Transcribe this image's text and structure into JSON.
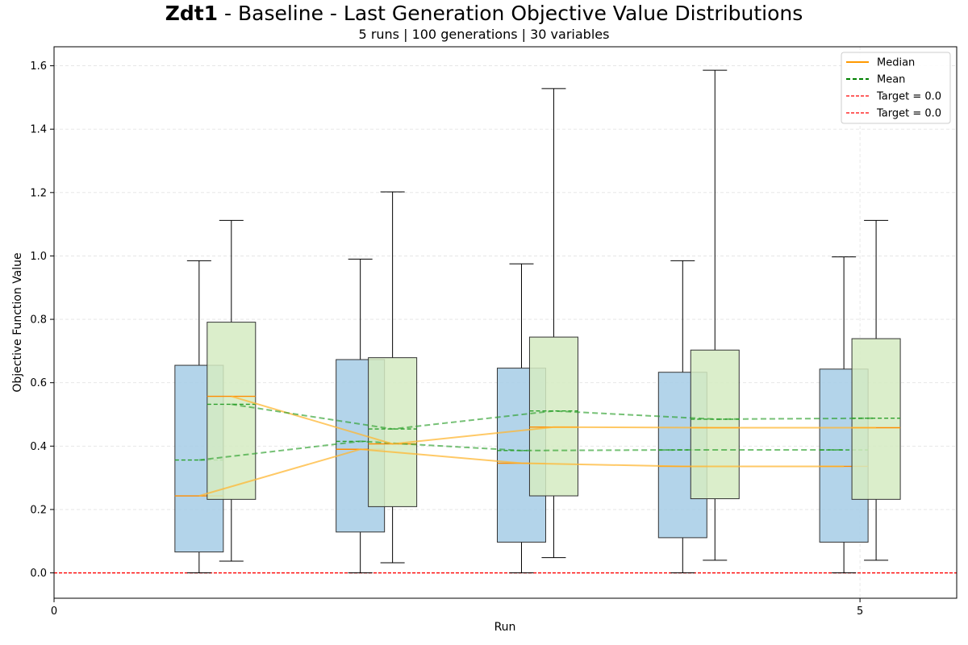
{
  "title": {
    "bold": "Zdt1",
    "rest": " - Baseline - Last Generation Objective Value Distributions"
  },
  "subtitle": "5 runs | 100 generations | 30 variables",
  "chart_data": {
    "type": "box",
    "xlabel": "Run",
    "ylabel": "Objective Function Value",
    "xlim": [
      0,
      5.6
    ],
    "ylim": [
      -0.08,
      1.66
    ],
    "x_ticks": [
      0,
      5
    ],
    "y_ticks": [
      0.0,
      0.2,
      0.4,
      0.6,
      0.8,
      1.0,
      1.2,
      1.4,
      1.6
    ],
    "grid": true,
    "legend_placement": "top-right",
    "legend": [
      {
        "label": "Median",
        "style": "solid",
        "color": "#ff9900"
      },
      {
        "label": "Mean",
        "style": "dashed",
        "color": "#008000"
      },
      {
        "label": "Target = 0.0",
        "style": "dashed-thin",
        "color": "#ff0000"
      },
      {
        "label": "Target = 0.0",
        "style": "dashed-thin",
        "color": "#ff0000"
      }
    ],
    "target_value": 0.0,
    "series": [
      {
        "color": "#a6cde6",
        "boxes": [
          {
            "x": 0.9,
            "whisker_low": 0.0,
            "q1": 0.066,
            "median": 0.243,
            "mean": 0.356,
            "q3": 0.655,
            "whisker_high": 0.985
          },
          {
            "x": 1.9,
            "whisker_low": 0.0,
            "q1": 0.129,
            "median": 0.39,
            "mean": 0.415,
            "q3": 0.673,
            "whisker_high": 0.99
          },
          {
            "x": 2.9,
            "whisker_low": 0.0,
            "q1": 0.097,
            "median": 0.346,
            "mean": 0.386,
            "q3": 0.646,
            "whisker_high": 0.975
          },
          {
            "x": 3.9,
            "whisker_low": 0.0,
            "q1": 0.111,
            "median": 0.336,
            "mean": 0.388,
            "q3": 0.633,
            "whisker_high": 0.985
          },
          {
            "x": 4.9,
            "whisker_low": 0.0,
            "q1": 0.097,
            "median": 0.336,
            "mean": 0.388,
            "q3": 0.643,
            "whisker_high": 0.997
          }
        ]
      },
      {
        "color": "#d5ebc2",
        "boxes": [
          {
            "x": 1.1,
            "whisker_low": 0.037,
            "q1": 0.232,
            "median": 0.557,
            "mean": 0.532,
            "q3": 0.791,
            "whisker_high": 1.112
          },
          {
            "x": 2.1,
            "whisker_low": 0.032,
            "q1": 0.209,
            "median": 0.407,
            "mean": 0.454,
            "q3": 0.679,
            "whisker_high": 1.202
          },
          {
            "x": 3.1,
            "whisker_low": 0.048,
            "q1": 0.243,
            "median": 0.46,
            "mean": 0.511,
            "q3": 0.744,
            "whisker_high": 1.528
          },
          {
            "x": 4.1,
            "whisker_low": 0.04,
            "q1": 0.234,
            "median": 0.458,
            "mean": 0.485,
            "q3": 0.703,
            "whisker_high": 1.586
          },
          {
            "x": 5.1,
            "whisker_low": 0.04,
            "q1": 0.232,
            "median": 0.458,
            "mean": 0.488,
            "q3": 0.739,
            "whisker_high": 1.112
          }
        ]
      }
    ]
  }
}
